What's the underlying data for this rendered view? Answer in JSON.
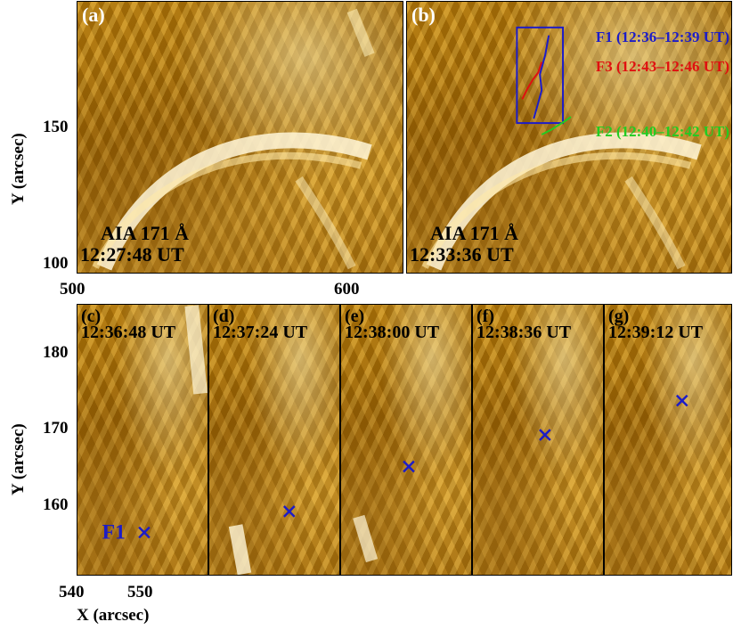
{
  "top_panels": [
    {
      "label": "(a)",
      "instrument": "AIA 171 Å",
      "time": "12:27:48 UT"
    },
    {
      "label": "(b)",
      "instrument": "AIA 171 Å",
      "time": "12:33:36 UT"
    }
  ],
  "legend": [
    {
      "text": "F1 (12:36–12:39 UT)",
      "color": "#1c1cc8"
    },
    {
      "text": "F3 (12:43–12:46 UT)",
      "color": "#e01010"
    },
    {
      "text": "F2 (12:40–12:42 UT)",
      "color": "#22cc22"
    }
  ],
  "top_axes": {
    "y_title": "Y (arcsec)",
    "y_ticks": [
      "150",
      "100"
    ],
    "x_ticks": [
      "500",
      "600"
    ]
  },
  "bottom_panels": [
    {
      "label": "(c)",
      "time": "12:36:48 UT",
      "marker_label": "F1"
    },
    {
      "label": "(d)",
      "time": "12:37:24 UT"
    },
    {
      "label": "(e)",
      "time": "12:38:00 UT"
    },
    {
      "label": "(f)",
      "time": "12:38:36 UT"
    },
    {
      "label": "(g)",
      "time": "12:39:12 UT"
    }
  ],
  "bottom_axes": {
    "y_title": "Y (arcsec)",
    "y_ticks": [
      "180",
      "170",
      "160"
    ],
    "x_ticks": [
      "540",
      "550"
    ],
    "x_title": "X (arcsec)"
  },
  "colors": {
    "marker": "#1c1cc8",
    "f1": "#1c1cc8",
    "f2": "#22cc22",
    "f3": "#e01010"
  }
}
